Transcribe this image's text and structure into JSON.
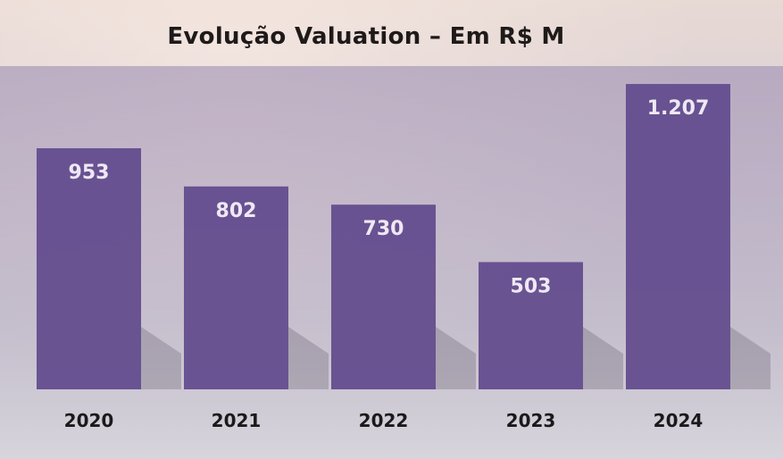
{
  "chart_data": {
    "type": "bar",
    "title": "Evolução Valuation – Em R$ M",
    "categories": [
      "2020",
      "2021",
      "2022",
      "2023",
      "2024"
    ],
    "values": [
      953,
      802,
      730,
      503,
      1207
    ],
    "value_labels": [
      "953",
      "802",
      "730",
      "503",
      "1.207"
    ],
    "ylim": [
      0,
      1300
    ],
    "grid": false,
    "legend": "none",
    "bar_color": "#654e8f"
  }
}
